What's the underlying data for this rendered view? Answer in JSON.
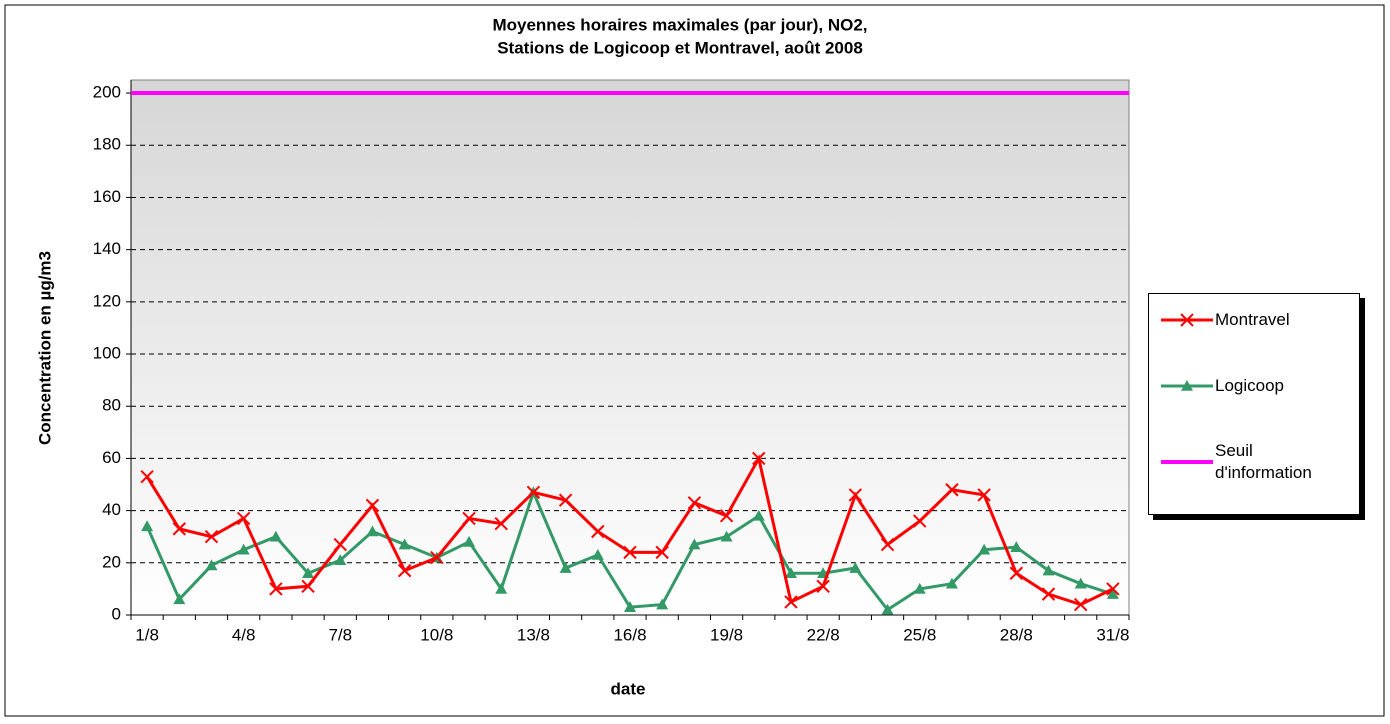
{
  "chart_data": {
    "type": "line",
    "title": [
      "Moyennes horaires maximales (par jour), NO2,",
      "Stations de Logicoop et Montravel, août 2008"
    ],
    "x_label": "date",
    "y_label": "Concentration en µg/m3",
    "categories": [
      "1/8",
      null,
      null,
      "4/8",
      null,
      null,
      "7/8",
      null,
      null,
      "10/8",
      null,
      null,
      "13/8",
      null,
      null,
      "16/8",
      null,
      null,
      "19/8",
      null,
      null,
      "22/8",
      null,
      null,
      "25/8",
      null,
      null,
      "28/8",
      null,
      null,
      "31/8"
    ],
    "series": [
      {
        "name": "Montravel",
        "color": "#ff0000",
        "marker": "x",
        "values": [
          53,
          33,
          30,
          37,
          10,
          11,
          27,
          42,
          17,
          22,
          37,
          35,
          47,
          44,
          32,
          24,
          24,
          43,
          38,
          60,
          5,
          11,
          46,
          27,
          36,
          48,
          46,
          16,
          8,
          4,
          10
        ]
      },
      {
        "name": "Logicoop",
        "color": "#339966",
        "marker": "triangle",
        "values": [
          34,
          6,
          19,
          25,
          30,
          16,
          21,
          32,
          27,
          22,
          28,
          10,
          47,
          18,
          23,
          3,
          4,
          27,
          30,
          38,
          16,
          16,
          18,
          2,
          10,
          12,
          25,
          26,
          17,
          12,
          8
        ]
      },
      {
        "name": "Seuil d'information",
        "color": "#ff00ff",
        "marker": "none",
        "values": [
          200,
          200,
          200,
          200,
          200,
          200,
          200,
          200,
          200,
          200,
          200,
          200,
          200,
          200,
          200,
          200,
          200,
          200,
          200,
          200,
          200,
          200,
          200,
          200,
          200,
          200,
          200,
          200,
          200,
          200,
          200
        ]
      }
    ],
    "ylim": [
      0,
      205
    ],
    "yticks": [
      0,
      20,
      40,
      60,
      80,
      100,
      120,
      140,
      160,
      180,
      200
    ],
    "grid": true,
    "grid_style": "dashed",
    "legend": "right"
  }
}
